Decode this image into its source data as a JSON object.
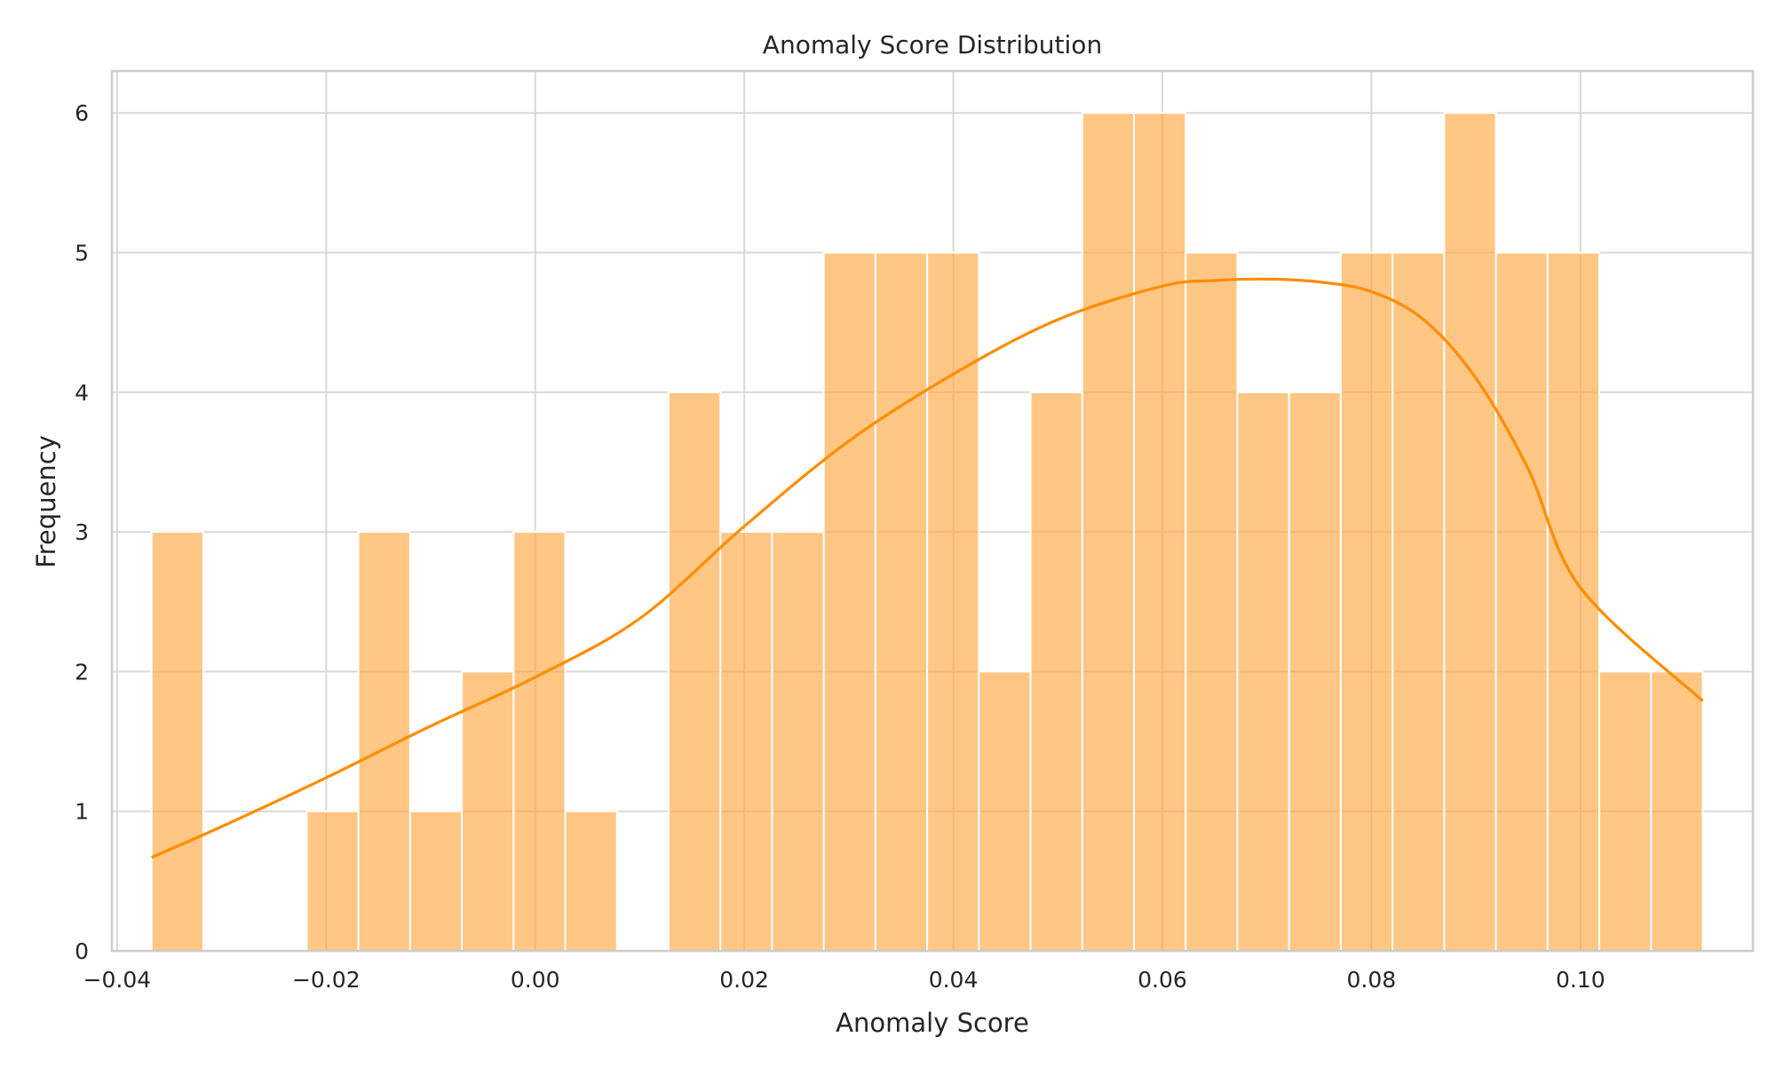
{
  "chart_data": {
    "type": "bar",
    "title": "Anomaly Score Distribution",
    "xlabel": "Anomaly Score",
    "ylabel": "Frequency",
    "xlim": [
      -0.0405,
      0.1165
    ],
    "ylim": [
      0,
      6.3
    ],
    "x_ticks": [
      -0.04,
      -0.02,
      0.0,
      0.02,
      0.04,
      0.06,
      0.08,
      0.1
    ],
    "x_tick_labels": [
      "−0.04",
      "−0.02",
      "0.00",
      "0.02",
      "0.04",
      "0.06",
      "0.08",
      "0.10"
    ],
    "y_ticks": [
      0,
      1,
      2,
      3,
      4,
      5,
      6
    ],
    "y_tick_labels": [
      "0",
      "1",
      "2",
      "3",
      "4",
      "5",
      "6"
    ],
    "grid": true,
    "bin_start": -0.0367,
    "bin_end": 0.1117,
    "counts": [
      3,
      0,
      0,
      1,
      3,
      1,
      2,
      3,
      1,
      0,
      4,
      3,
      3,
      5,
      5,
      5,
      2,
      4,
      6,
      6,
      5,
      4,
      4,
      5,
      5,
      6,
      5,
      5,
      2,
      2
    ],
    "bar_color": "#ffa940",
    "kde_color": "#ff8c00",
    "kde": {
      "x": [
        -0.0367,
        -0.03,
        -0.02,
        -0.01,
        0.0,
        0.01,
        0.02,
        0.03,
        0.04,
        0.05,
        0.06,
        0.065,
        0.07,
        0.075,
        0.08,
        0.085,
        0.09,
        0.095,
        0.1,
        0.1117
      ],
      "y": [
        0.67,
        0.89,
        1.24,
        1.61,
        1.96,
        2.38,
        3.04,
        3.65,
        4.13,
        4.52,
        4.76,
        4.8,
        4.81,
        4.79,
        4.72,
        4.52,
        4.1,
        3.45,
        2.6,
        1.79
      ]
    }
  }
}
